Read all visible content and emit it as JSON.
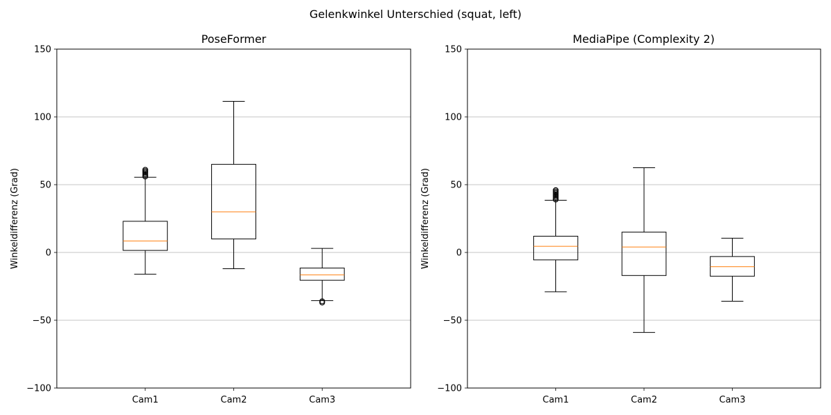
{
  "figure": {
    "suptitle": "Gelenkwinkel Unterschied (squat, left)"
  },
  "chart_data": [
    {
      "type": "boxplot",
      "title": "PoseFormer",
      "ylabel": "Winkeldifferenz (Grad)",
      "xlabel": "",
      "ylim": [
        -100,
        150
      ],
      "yticks": [
        -100,
        -50,
        0,
        50,
        100,
        150
      ],
      "ytick_labels": [
        "−100",
        "−50",
        "0",
        "50",
        "100",
        "150"
      ],
      "grid": "y",
      "categories": [
        "Cam1",
        "Cam2",
        "Cam3"
      ],
      "boxes": [
        {
          "whislo": -16,
          "q1": 1.5,
          "med": 8.5,
          "q3": 23,
          "whishi": 55.5,
          "fliers": [
            56,
            57,
            58,
            59,
            60,
            61
          ]
        },
        {
          "whislo": -12,
          "q1": 10,
          "med": 30,
          "q3": 65,
          "whishi": 111.5,
          "fliers": []
        },
        {
          "whislo": -35.5,
          "q1": -20.5,
          "med": -16.5,
          "q3": -11.5,
          "whishi": 3,
          "fliers": [
            -36,
            -37
          ]
        }
      ],
      "colors": {
        "box": "#000000",
        "median": "#ff7f0e",
        "grid": "#b0b0b0"
      }
    },
    {
      "type": "boxplot",
      "title": "MediaPipe (Complexity 2)",
      "ylabel": "Winkeldifferenz (Grad)",
      "xlabel": "",
      "ylim": [
        -100,
        150
      ],
      "yticks": [
        -100,
        -50,
        0,
        50,
        100,
        150
      ],
      "ytick_labels": [
        "−100",
        "−50",
        "0",
        "50",
        "100",
        "150"
      ],
      "grid": "y",
      "categories": [
        "Cam1",
        "Cam2",
        "Cam3"
      ],
      "boxes": [
        {
          "whislo": -29,
          "q1": -5.5,
          "med": 4.5,
          "q3": 12,
          "whishi": 38.5,
          "fliers": [
            39,
            40,
            41,
            42,
            43,
            44,
            45,
            46
          ]
        },
        {
          "whislo": -59,
          "q1": -17,
          "med": 4,
          "q3": 15,
          "whishi": 62.5,
          "fliers": []
        },
        {
          "whislo": -36,
          "q1": -17.5,
          "med": -10.5,
          "q3": -3,
          "whishi": 10.5,
          "fliers": []
        }
      ],
      "colors": {
        "box": "#000000",
        "median": "#ff7f0e",
        "grid": "#b0b0b0"
      }
    }
  ]
}
